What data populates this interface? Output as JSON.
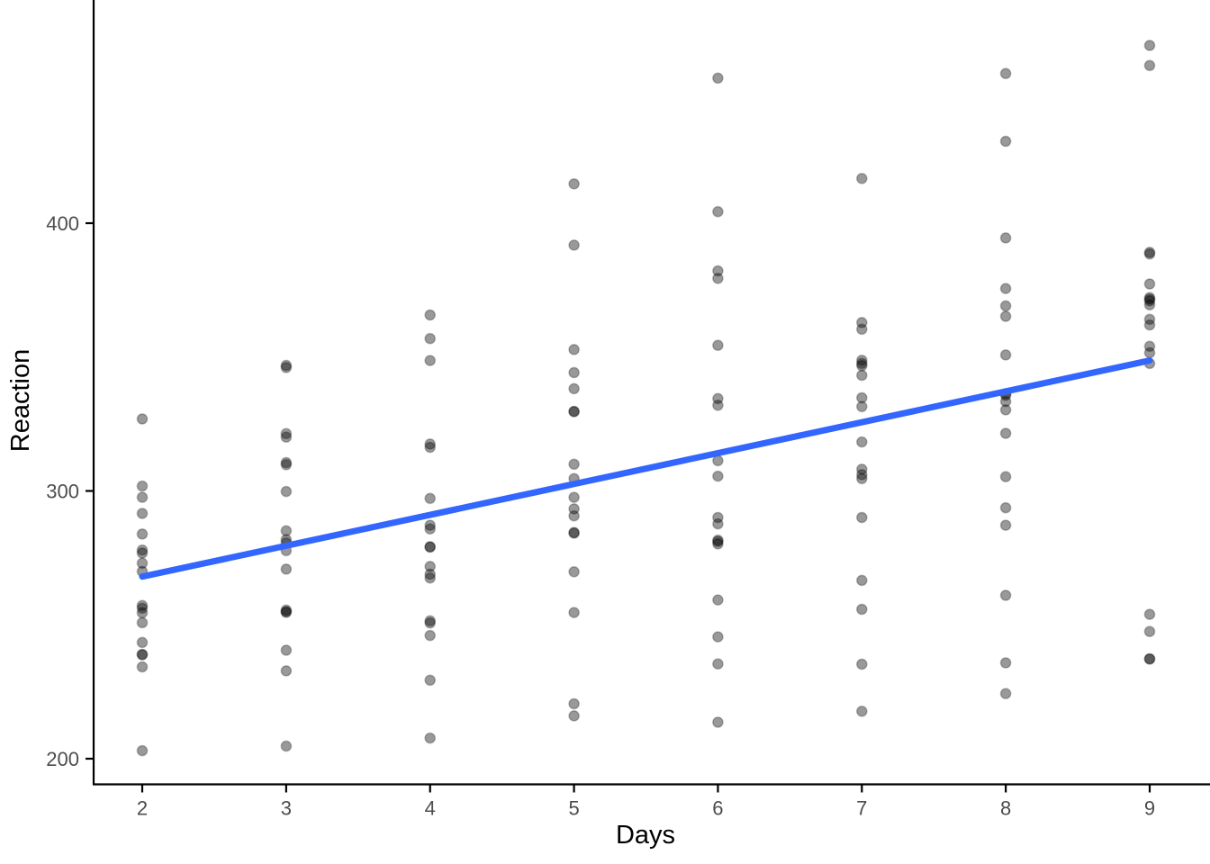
{
  "chart_data": {
    "type": "scatter",
    "title": "",
    "xlabel": "Days",
    "ylabel": "Reaction",
    "x_ticks": [
      2,
      3,
      4,
      5,
      6,
      7,
      8,
      9
    ],
    "y_ticks": [
      200,
      300,
      400
    ],
    "xlim": [
      1.66,
      9.42
    ],
    "ylim": [
      191,
      483
    ],
    "grid": "off",
    "legend": "none",
    "points_by_day": [
      {
        "day": 2,
        "reactions": [
          250.8,
          203.0,
          234.3,
          283.9,
          301.8,
          273.0,
          276.8,
          243.4,
          254.5,
          291.6,
          238.9,
          256.2,
          269.9,
          326.9,
          257.2,
          238.9,
          277.9,
          297.6
        ]
      },
      {
        "day": 3,
        "reactions": [
          321.4,
          204.7,
          232.8,
          285.1,
          320.1,
          309.8,
          299.8,
          254.7,
          270.8,
          346.1,
          254.9,
          255.5,
          280.6,
          346.9,
          277.7,
          240.5,
          281.8,
          310.6
        ]
      },
      {
        "day": 4,
        "reactions": [
          356.9,
          207.7,
          229.3,
          285.8,
          316.3,
          317.5,
          297.2,
          279.0,
          251.5,
          365.7,
          250.7,
          268.9,
          271.8,
          348.7,
          246.0,
          267.5,
          279.2,
          287.2
        ]
      },
      {
        "day": 5,
        "reactions": [
          414.7,
          216.0,
          220.5,
          297.6,
          293.3,
          310.0,
          338.2,
          284.2,
          254.6,
          391.8,
          269.8,
          329.7,
          304.6,
          352.8,
          290.7,
          344.2,
          284.5,
          329.6
        ]
      },
      {
        "day": 6,
        "reactions": [
          382.2,
          213.6,
          235.4,
          280.2,
          290.1,
          454.2,
          332.0,
          305.5,
          245.5,
          404.3,
          281.6,
          379.4,
          287.7,
          354.4,
          311.3,
          281.1,
          259.3,
          334.5
        ]
      },
      {
        "day": 7,
        "reactions": [
          290.1,
          217.7,
          255.8,
          318.3,
          334.8,
          346.8,
          348.8,
          331.5,
          235.3,
          416.7,
          308.1,
          362.9,
          266.6,
          360.4,
          306.1,
          347.6,
          304.6,
          343.2
        ]
      },
      {
        "day": 8,
        "reactions": [
          430.6,
          224.3,
          261.0,
          305.3,
          293.7,
          330.3,
          333.4,
          335.7,
          235.8,
          455.9,
          336.3,
          394.5,
          321.5,
          375.6,
          287.2,
          365.2,
          350.8,
          369.1
        ]
      },
      {
        "day": 9,
        "reactions": [
          466.4,
          237.3,
          247.5,
          354.0,
          371.6,
          253.9,
          362.0,
          377.3,
          237.2,
          458.9,
          351.6,
          389.1,
          347.6,
          388.5,
          371.0,
          372.2,
          369.5,
          364.1
        ]
      }
    ],
    "trend_line": {
      "x": [
        2,
        9
      ],
      "y": [
        268.0,
        348.7
      ]
    },
    "styles": {
      "point_fill": "rgba(0,0,0,0.40)",
      "point_stroke": "rgba(0,0,0,0.22)",
      "point_radius": 5.6,
      "trend_color": "#3366FF",
      "trend_width": 7,
      "axis_color": "#000000",
      "tick_label_color": "#4d4d4d",
      "background": "#ffffff"
    }
  }
}
